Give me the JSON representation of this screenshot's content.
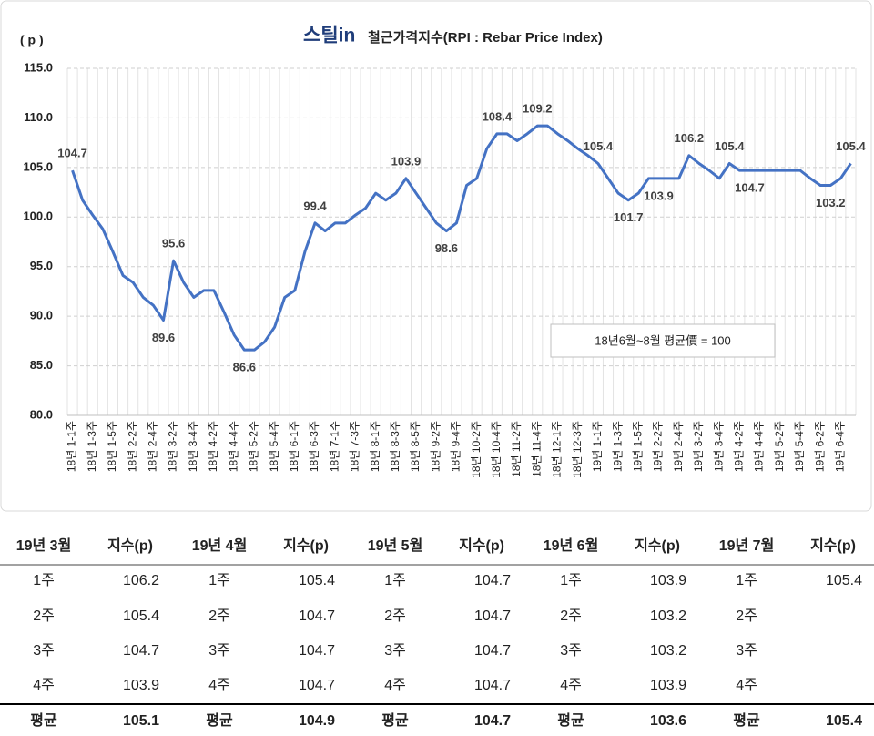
{
  "chart_data": {
    "type": "line",
    "title_logo": "스틸in",
    "title": "철근가격지수(RPI : Rebar Price Index)",
    "y_label": "( p )",
    "annotation": "18년6월~8월 평균價 = 100",
    "categories": [
      "18년 1-1주",
      null,
      "18년 1-3주",
      null,
      "18년 1-5주",
      null,
      "18년 2-2주",
      null,
      "18년 2-4주",
      null,
      "18년 3-2주",
      null,
      "18년 3-4주",
      null,
      "18년 4-2주",
      null,
      "18년 4-4주",
      null,
      "18년 5-2주",
      null,
      "18년 5-4주",
      null,
      "18년 6-1주",
      null,
      "18년 6-3주",
      null,
      "18년 7-1주",
      null,
      "18년 7-3주",
      null,
      "18년 8-1주",
      null,
      "18년 8-3주",
      null,
      "18년 8-5주",
      null,
      "18년 9-2주",
      null,
      "18년 9-4주",
      null,
      "18년 10-2주",
      null,
      "18년 10-4주",
      null,
      "18년 11-2주",
      null,
      "18년 11-4주",
      null,
      "18년 12-1주",
      null,
      "18년 12-3주",
      null,
      "19년 1-1주",
      null,
      "19년 1-3주",
      null,
      "19년 1-5주",
      null,
      "19년 2-2주",
      null,
      "19년 2-4주",
      null,
      "19년 3-2주",
      null,
      "19년 3-4주",
      null,
      "19년 4-2주",
      null,
      "19년 4-4주",
      null,
      "19년 5-2주",
      null,
      "19년 5-4주",
      null,
      "19년 6-2주",
      null,
      "19년 6-4주",
      null
    ],
    "values": [
      104.7,
      101.7,
      100.2,
      98.8,
      96.5,
      94.1,
      93.4,
      91.9,
      91.1,
      89.6,
      95.6,
      93.4,
      91.9,
      92.6,
      92.6,
      90.4,
      88.1,
      86.6,
      86.6,
      87.4,
      88.9,
      91.9,
      92.6,
      96.5,
      99.4,
      98.6,
      99.4,
      99.4,
      100.2,
      100.9,
      102.4,
      101.7,
      102.4,
      103.9,
      102.4,
      100.9,
      99.4,
      98.6,
      99.4,
      103.2,
      103.9,
      106.9,
      108.4,
      108.4,
      107.7,
      108.4,
      109.2,
      109.2,
      108.4,
      107.7,
      106.9,
      106.2,
      105.4,
      103.9,
      102.4,
      101.7,
      102.4,
      103.9,
      103.9,
      103.9,
      103.9,
      106.2,
      105.4,
      104.7,
      103.9,
      105.4,
      104.7,
      104.7,
      104.7,
      104.7,
      104.7,
      104.7,
      104.7,
      103.9,
      103.2,
      103.2,
      103.9,
      105.4
    ],
    "value_labels": [
      "104.7",
      null,
      null,
      null,
      null,
      null,
      null,
      null,
      null,
      "89.6",
      "95.6",
      null,
      null,
      null,
      null,
      null,
      null,
      "86.6",
      null,
      null,
      null,
      null,
      null,
      null,
      "99.4",
      null,
      null,
      null,
      null,
      null,
      null,
      null,
      null,
      "103.9",
      null,
      null,
      null,
      "98.6",
      null,
      null,
      null,
      null,
      "108.4",
      null,
      null,
      null,
      "109.2",
      null,
      null,
      null,
      null,
      null,
      "105.4",
      null,
      null,
      "101.7",
      null,
      null,
      "103.9",
      null,
      null,
      "106.2",
      null,
      null,
      null,
      "105.4",
      null,
      "104.7",
      null,
      null,
      null,
      null,
      null,
      null,
      null,
      "103.2",
      null,
      "105.4"
    ],
    "color": "#4472c4",
    "ylim": [
      80,
      115
    ],
    "yticks": [
      {
        "value": 80,
        "label": "80.0"
      },
      {
        "value": 85,
        "label": "85.0"
      },
      {
        "value": 90,
        "label": "90.0"
      },
      {
        "value": 95,
        "label": "95.0"
      },
      {
        "value": 100,
        "label": "100.0"
      },
      {
        "value": 105,
        "label": "105.0"
      },
      {
        "value": 110,
        "label": "110.0"
      },
      {
        "value": 115,
        "label": "115.0"
      }
    ],
    "grid": true
  },
  "table": {
    "header": [
      "19년 3월",
      "지수(p)",
      "19년 4월",
      "지수(p)",
      "19년 5월",
      "지수(p)",
      "19년 6월",
      "지수(p)",
      "19년 7월",
      "지수(p)"
    ],
    "rows": [
      [
        "1주",
        "106.2",
        "1주",
        "105.4",
        "1주",
        "104.7",
        "1주",
        "103.9",
        "1주",
        "105.4"
      ],
      [
        "2주",
        "105.4",
        "2주",
        "104.7",
        "2주",
        "104.7",
        "2주",
        "103.2",
        "2주",
        null
      ],
      [
        "3주",
        "104.7",
        "3주",
        "104.7",
        "3주",
        "104.7",
        "3주",
        "103.2",
        "3주",
        null
      ],
      [
        "4주",
        "103.9",
        "4주",
        "104.7",
        "4주",
        "104.7",
        "4주",
        "103.9",
        "4주",
        null
      ]
    ],
    "footer": [
      "평균",
      "105.1",
      "평균",
      "104.9",
      "평균",
      "104.7",
      "평균",
      "103.6",
      "평균",
      "105.4"
    ]
  }
}
